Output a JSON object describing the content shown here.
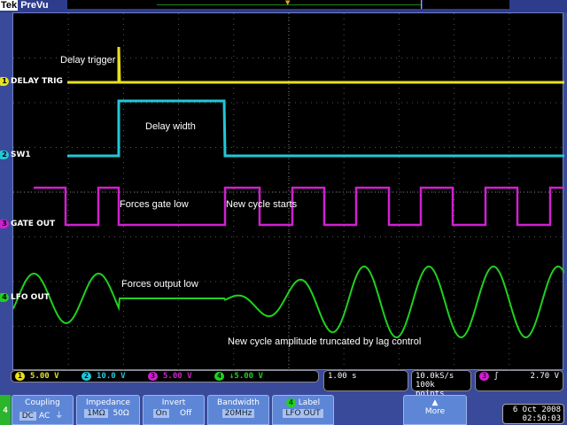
{
  "header": {
    "brand": "Tek",
    "mode": "PreVu"
  },
  "annotations": {
    "delay_trigger": "Delay trigger",
    "delay_width": "Delay width",
    "forces_gate_low": "Forces gate low",
    "new_cycle_starts": "New cycle starts",
    "forces_output_low": "Forces output low",
    "amplitude_truncated": "New cycle amplitude truncated by lag control"
  },
  "channels": [
    {
      "num": "1",
      "label": "DELAY TRIG",
      "scale": "5.00 V",
      "color": "#e8e020"
    },
    {
      "num": "2",
      "label": "SW1",
      "scale": "10.0 V",
      "color": "#20c8d8"
    },
    {
      "num": "3",
      "label": "GATE OUT",
      "scale": "5.00 V",
      "color": "#d020d0"
    },
    {
      "num": "4",
      "label": "LFO OUT",
      "scale": "↓5.00 V",
      "color": "#20d020"
    }
  ],
  "timebase": "1.00 s",
  "acquisition": {
    "rate": "10.0kS/s",
    "points": "100k points"
  },
  "trigger": {
    "source": "3",
    "slope": "ʃ",
    "level": "2.70 V"
  },
  "menu": {
    "channel_tab": "4",
    "coupling": {
      "title": "Coupling",
      "options": [
        "DC",
        "AC",
        "⏚"
      ],
      "selected": "DC"
    },
    "impedance": {
      "title": "Impedance",
      "options": [
        "1MΩ",
        "50Ω"
      ],
      "selected": "1MΩ"
    },
    "invert": {
      "title": "Invert",
      "options": [
        "On",
        "Off"
      ],
      "selected": "On"
    },
    "bandwidth": {
      "title": "Bandwidth",
      "value": "20MHz"
    },
    "label": {
      "title": "Label",
      "value": "LFO OUT"
    },
    "more": "More"
  },
  "datetime": {
    "date": "6 Oct  2008",
    "time": "02:50:03"
  }
}
